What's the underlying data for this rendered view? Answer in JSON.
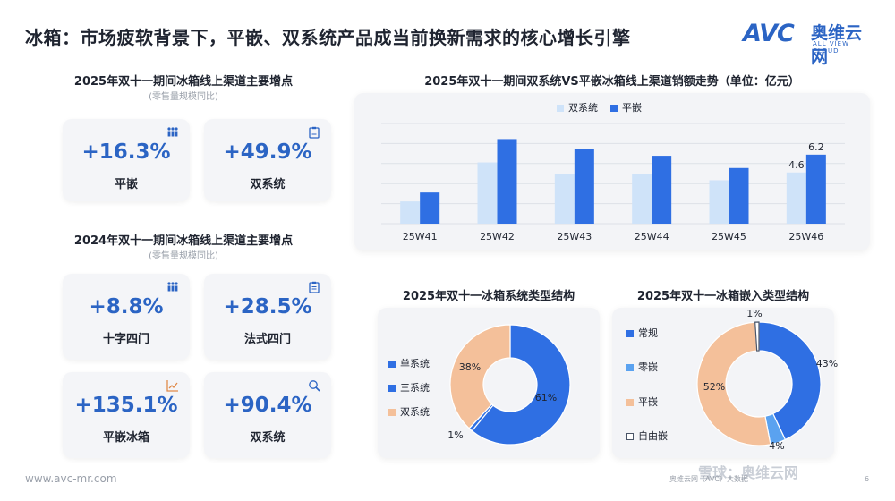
{
  "header": {
    "title": "冰箱：市场疲软背景下，平嵌、双系统产品成当前换新需求的核心增长引擎",
    "logo_text": "AVC",
    "logo_cn": "奥维云网",
    "logo_en": "ALL VIEW CLOUD"
  },
  "left": {
    "section_2025": {
      "title": "2025年双十一期间冰箱线上渠道主要增点",
      "subtitle": "(零售量规模同比)",
      "cards": [
        {
          "value": "+16.3%",
          "label": "平嵌",
          "icon": "people-icon"
        },
        {
          "value": "+49.9%",
          "label": "双系统",
          "icon": "clipboard-icon"
        }
      ]
    },
    "section_2024": {
      "title": "2024年双十一期间冰箱线上渠道主要增点",
      "subtitle": "(零售量规模同比)",
      "cards": [
        {
          "value": "+8.8%",
          "label": "十字四门",
          "icon": "people-icon"
        },
        {
          "value": "+28.5%",
          "label": "法式四门",
          "icon": "clipboard-icon"
        },
        {
          "value": "+135.1%",
          "label": "平嵌冰箱",
          "icon": "line-chart-icon"
        },
        {
          "value": "+90.4%",
          "label": "双系统",
          "icon": "magnifier-icon"
        }
      ]
    }
  },
  "colors": {
    "light_blue": "#cfe3f9",
    "blue": "#2f6fe3",
    "orange": "#f4c09a",
    "text_blue": "#2b64c4"
  },
  "chart_data": [
    {
      "type": "bar",
      "title": "2025年双十一期间双系统VS平嵌冰箱线上渠道销额走势（单位：亿元）",
      "categories": [
        "25W41",
        "25W42",
        "25W43",
        "25W44",
        "25W45",
        "25W46"
      ],
      "series": [
        {
          "name": "双系统",
          "values": [
            2.0,
            5.5,
            4.5,
            4.5,
            3.9,
            4.6
          ],
          "color": "#cfe3f9"
        },
        {
          "name": "平嵌",
          "values": [
            2.8,
            7.6,
            6.7,
            6.1,
            5.0,
            6.2
          ],
          "color": "#2f6fe3"
        }
      ],
      "data_labels": [
        "4.6",
        "6.2"
      ],
      "ylim": [
        0,
        9
      ],
      "grid": true,
      "legend": "top-center"
    },
    {
      "type": "pie",
      "title": "2025年双十一冰箱系统类型结构",
      "labels": [
        "单系统",
        "三系统",
        "双系统"
      ],
      "values": [
        61,
        1,
        38
      ],
      "value_labels": [
        "61%",
        "1%",
        "38%"
      ],
      "colors": [
        "#2f6fe3",
        "#2f6fe3",
        "#f4c09a"
      ],
      "legend": "left"
    },
    {
      "type": "pie",
      "title": "2025年双十一冰箱嵌入类型结构",
      "labels": [
        "常规",
        "零嵌",
        "平嵌",
        "自由嵌"
      ],
      "values": [
        43,
        4,
        52,
        1
      ],
      "value_labels": [
        "43%",
        "4%",
        "52%",
        "1%"
      ],
      "colors": [
        "#2f6fe3",
        "#5aa2f0",
        "#f4c09a",
        "#ffffff"
      ],
      "legend": "left"
    }
  ],
  "footer": {
    "url": "www.avc-mr.com",
    "note": "奥维云网（AVC）大数据",
    "brand": "雪球：奥维云网",
    "page": "6"
  }
}
